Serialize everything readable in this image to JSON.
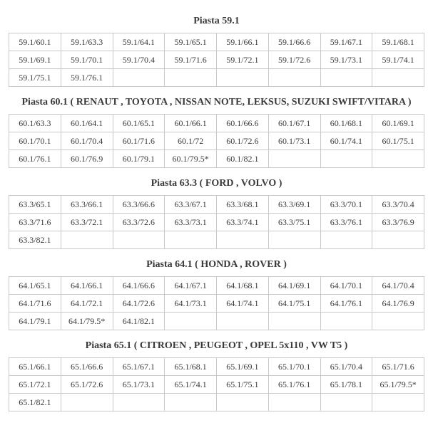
{
  "sections": [
    {
      "title": "Piasta 59.1",
      "cols": 8,
      "rows": [
        [
          "59.1/60.1",
          "59.1/63.3",
          "59.1/64.1",
          "59.1/65.1",
          "59.1/66.1",
          "59.1/66.6",
          "59.1/67.1",
          "59.1/68.1"
        ],
        [
          "59.1/69.1",
          "59.1/70.1",
          "59.1/70.4",
          "59.1/71.6",
          "59.1/72.1",
          "59.1/72.6",
          "59.1/73.1",
          "59.1/74.1"
        ],
        [
          "59.1/75.1",
          "59.1/76.1",
          "",
          "",
          "",
          "",
          "",
          ""
        ]
      ]
    },
    {
      "title": "Piasta 60.1 ( RENAUT , TOYOTA , NISSAN NOTE, LEKSUS, SUZUKI SWIFT/VITARA )",
      "cols": 8,
      "rows": [
        [
          "60.1/63.3",
          "60.1/64.1",
          "60.1/65.1",
          "60.1/66.1",
          "60.1/66.6",
          "60.1/67.1",
          "60.1/68.1",
          "60.1/69.1"
        ],
        [
          "60.1/70.1",
          "60.1/70.4",
          "60.1/71.6",
          "60.1/72",
          "60.1/72.6",
          "60.1/73.1",
          "60.1/74.1",
          "60.1/75.1"
        ],
        [
          "60.1/76.1",
          "60.1/76.9",
          "60.1/79.1",
          "60.1/79.5*",
          "60.1/82.1",
          "",
          "",
          ""
        ]
      ]
    },
    {
      "title": "Piasta 63.3 ( FORD , VOLVO )",
      "cols": 8,
      "rows": [
        [
          "63.3/65.1",
          "63.3/66.1",
          "63.3/66.6",
          "63.3/67.1",
          "63.3/68.1",
          "63.3/69.1",
          "63.3/70.1",
          "63.3/70.4"
        ],
        [
          "63.3/71.6",
          "63.3/72.1",
          "63.3/72.6",
          "63.3/73.1",
          "63.3/74.1",
          "63.3/75.1",
          "63.3/76.1",
          "63.3/76.9"
        ],
        [
          "63.3/82.1",
          "",
          "",
          "",
          "",
          "",
          "",
          ""
        ]
      ]
    },
    {
      "title": "Piasta 64.1 ( HONDA , ROVER  )",
      "cols": 8,
      "rows": [
        [
          "64.1/65.1",
          "64.1/66.1",
          "64.1/66.6",
          "64.1/67.1",
          "64.1/68.1",
          "64.1/69.1",
          "64.1/70.1",
          "64.1/70.4"
        ],
        [
          "64.1/71.6",
          "64.1/72.1",
          "64.1/72.6",
          "64.1/73.1",
          "64.1/74.1",
          "64.1/75.1",
          "64.1/76.1",
          "64.1/76.9"
        ],
        [
          "64.1/79.1",
          "64.1/79.5*",
          "64.1/82.1",
          "",
          "",
          "",
          "",
          ""
        ]
      ]
    },
    {
      "title": "Piasta 65.1 ( CITROEN , PEUGEOT , OPEL 5x110 , VW T5 )",
      "cols": 8,
      "rows": [
        [
          "65.1/66.1",
          "65.1/66.6",
          "65.1/67.1",
          "65.1/68.1",
          "65.1/69.1",
          "65.1/70.1",
          "65.1/70.4",
          "65.1/71.6"
        ],
        [
          "65.1/72.1",
          "65.1/72.6",
          "65.1/73.1",
          "65.1/74.1",
          "65.1/75.1",
          "65.1/76.1",
          "65.1/78.1",
          "65.1/79.5*"
        ],
        [
          "65.1/82.1",
          "",
          "",
          "",
          "",
          "",
          "",
          ""
        ]
      ]
    }
  ]
}
